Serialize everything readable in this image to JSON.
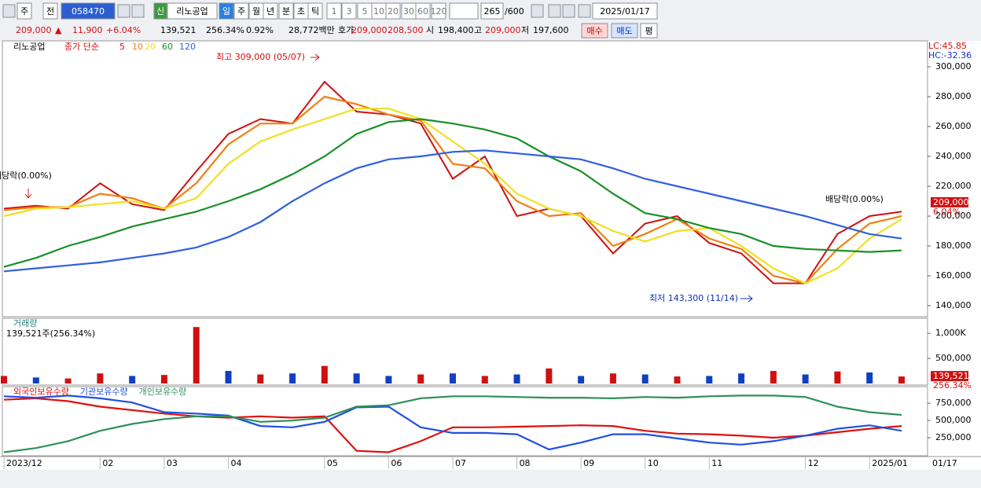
{
  "toolbar": {
    "period": "주",
    "prev": "전",
    "code": "058470",
    "credit": "신",
    "name": "리노공업",
    "units": [
      "일",
      "주",
      "월",
      "년",
      "분",
      "초",
      "틱"
    ],
    "intervals": [
      "1",
      "3",
      "5",
      "10",
      "20",
      "30",
      "60",
      "120"
    ],
    "count": "265",
    "max": "/600",
    "date": "2025/01/17"
  },
  "quote": {
    "price": "209,000",
    "arrow": "▲",
    "change": "11,900",
    "rate": "+6.04%",
    "volume": "139,521",
    "volume_rate": "256.34%",
    "turnover": "0.92%",
    "amount": "28,772백만",
    "ask_label": "호가",
    "ask": "209,000",
    "bid": "208,500",
    "open_label": "시",
    "open": "198,400",
    "high_label": "고",
    "high": "209,000",
    "low_label": "저",
    "low": "197,600",
    "buy": "매수",
    "sell": "매도",
    "avg": "평"
  },
  "chart_data": [
    {
      "type": "line",
      "title": "리노공업",
      "legend_title": "종가 단순",
      "lc": "LC:45.85",
      "hc": "HC:-32.36",
      "change_label": "6.04%",
      "last": 209000,
      "annotations": {
        "high": "최고 309,000 (05/07)",
        "low": "최저 143,300 (11/14)",
        "dividend": "배당락(0.00%)"
      },
      "ylim": [
        132600,
        317400
      ],
      "yticks": [
        {
          "value": 140000,
          "label": "140,000"
        },
        {
          "value": 160000,
          "label": "160,000"
        },
        {
          "value": 180000,
          "label": "180,000"
        },
        {
          "value": 200000,
          "label": "200,000"
        },
        {
          "value": 220000,
          "label": "220,000"
        },
        {
          "value": 240000,
          "label": "240,000"
        },
        {
          "value": 260000,
          "label": "260,000"
        },
        {
          "value": 280000,
          "label": "280,000"
        },
        {
          "value": 300000,
          "label": "300,000"
        }
      ],
      "grid": false,
      "series": [
        {
          "name": "5",
          "color": "#d01010",
          "values": [
            205000,
            207000,
            205000,
            222000,
            208000,
            204000,
            230000,
            255000,
            265000,
            262000,
            290000,
            270000,
            268000,
            262000,
            225000,
            240000,
            200000,
            205000,
            200000,
            175000,
            195000,
            200000,
            182000,
            175000,
            155000,
            155000,
            188000,
            200000,
            203000
          ]
        },
        {
          "name": "10",
          "color": "#f08010",
          "values": [
            204000,
            206000,
            206000,
            215000,
            212000,
            205000,
            222000,
            248000,
            262000,
            262000,
            280000,
            275000,
            268000,
            264000,
            235000,
            232000,
            210000,
            200000,
            202000,
            180000,
            188000,
            198000,
            185000,
            178000,
            160000,
            155000,
            178000,
            195000,
            200000
          ]
        },
        {
          "name": "20",
          "color": "#f0e020",
          "values": [
            200000,
            205000,
            206000,
            208000,
            210000,
            205000,
            212000,
            235000,
            250000,
            258000,
            265000,
            272000,
            272000,
            265000,
            250000,
            235000,
            215000,
            205000,
            200000,
            190000,
            183000,
            190000,
            192000,
            180000,
            165000,
            155000,
            165000,
            185000,
            198000
          ]
        },
        {
          "name": "60",
          "color": "#189028",
          "values": [
            166000,
            172000,
            180000,
            186000,
            193000,
            198000,
            203000,
            210000,
            218000,
            228000,
            240000,
            255000,
            263000,
            265000,
            262000,
            258000,
            252000,
            240000,
            230000,
            215000,
            202000,
            198000,
            192000,
            188000,
            180000,
            178000,
            177000,
            176000,
            177000
          ]
        },
        {
          "name": "120",
          "color": "#3060e0",
          "values": [
            163000,
            165000,
            167000,
            169000,
            172000,
            175000,
            179000,
            186000,
            196000,
            210000,
            222000,
            232000,
            238000,
            240000,
            243000,
            244000,
            242000,
            240000,
            238000,
            232000,
            225000,
            220000,
            215000,
            210000,
            205000,
            200000,
            194000,
            188000,
            185000
          ]
        }
      ]
    },
    {
      "type": "bar",
      "title": "거래량",
      "subtitle": "139,521주(256.34%)",
      "ylim": [
        0,
        1300000
      ],
      "yticks": [
        {
          "value": 500000,
          "label": "500,000"
        },
        {
          "value": 1000000,
          "label": "1,000K"
        }
      ],
      "values": [
        150000,
        120000,
        100000,
        200000,
        150000,
        170000,
        1125000,
        250000,
        180000,
        200000,
        350000,
        200000,
        150000,
        180000,
        200000,
        150000,
        180000,
        300000,
        150000,
        200000,
        180000,
        140000,
        150000,
        200000,
        250000,
        180000,
        240000,
        220000,
        139521
      ],
      "colors": [
        "#d01010",
        "#1040c0",
        "#d01010",
        "#d01010",
        "#1040c0",
        "#d01010",
        "#d01010",
        "#1040c0",
        "#d01010",
        "#1040c0",
        "#d01010",
        "#1040c0",
        "#1040c0",
        "#d01010",
        "#1040c0",
        "#d01010",
        "#1040c0",
        "#d01010",
        "#1040c0",
        "#d01010",
        "#1040c0",
        "#d01010",
        "#1040c0",
        "#1040c0",
        "#d01010",
        "#1040c0",
        "#d01010",
        "#1040c0",
        "#d01010"
      ],
      "value_label": "139,521",
      "rate_label": "256.34%"
    },
    {
      "type": "line",
      "ylim": [
        0,
        990000
      ],
      "yticks": [
        {
          "value": 250000,
          "label": "250,000"
        },
        {
          "value": 500000,
          "label": "500,000"
        },
        {
          "value": 750000,
          "label": "750,000"
        }
      ],
      "categories": [
        "2023/12",
        null,
        null,
        "02",
        null,
        "03",
        null,
        "04",
        null,
        null,
        "05",
        null,
        "06",
        null,
        "07",
        null,
        "08",
        null,
        "09",
        null,
        "10",
        null,
        "11",
        null,
        null,
        "12",
        null,
        "2025/01",
        null
      ],
      "cursor_date": "01/17",
      "series": [
        {
          "name": "외국인보유수량",
          "color": "#e01010",
          "values": [
            800000,
            820000,
            780000,
            700000,
            650000,
            600000,
            560000,
            540000,
            560000,
            540000,
            560000,
            60000,
            40000,
            200000,
            400000,
            400000,
            410000,
            420000,
            430000,
            420000,
            350000,
            310000,
            300000,
            280000,
            250000,
            280000,
            330000,
            380000,
            420000
          ]
        },
        {
          "name": "기관보유수량",
          "color": "#2050e0",
          "values": [
            850000,
            830000,
            860000,
            820000,
            760000,
            620000,
            600000,
            570000,
            420000,
            400000,
            480000,
            690000,
            700000,
            400000,
            320000,
            320000,
            300000,
            80000,
            180000,
            300000,
            300000,
            240000,
            180000,
            150000,
            200000,
            280000,
            380000,
            430000,
            350000
          ]
        },
        {
          "name": "개인보유수량",
          "color": "#30905a",
          "values": [
            40000,
            100000,
            200000,
            350000,
            450000,
            520000,
            560000,
            560000,
            480000,
            500000,
            540000,
            700000,
            720000,
            820000,
            850000,
            850000,
            840000,
            830000,
            830000,
            820000,
            840000,
            830000,
            850000,
            860000,
            860000,
            840000,
            700000,
            620000,
            580000
          ]
        }
      ]
    }
  ]
}
